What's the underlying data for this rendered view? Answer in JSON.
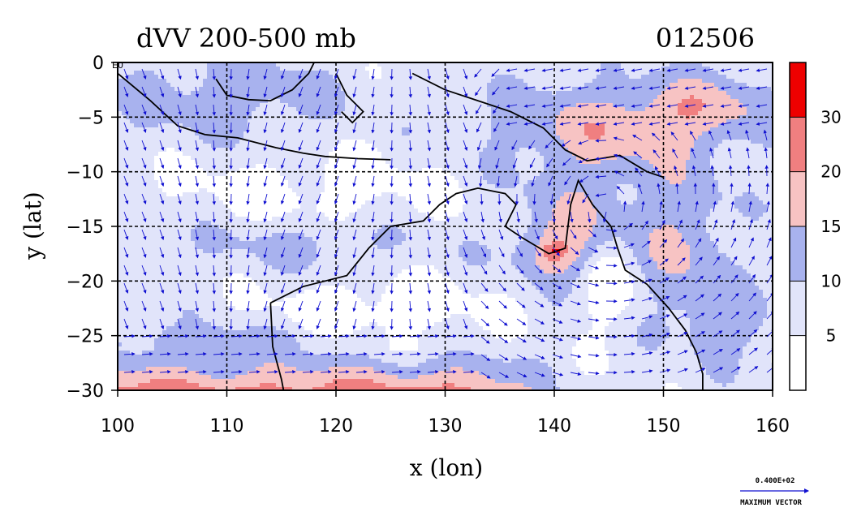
{
  "chart_data": {
    "type": "heatmap",
    "title": "dVV 200-500 mb",
    "date_label": "012506",
    "xlabel": "x (lon)",
    "ylabel": "y (lat)",
    "xlim": [
      100,
      160
    ],
    "ylim": [
      -30,
      0
    ],
    "x_ticks": [
      "100",
      "110",
      "120",
      "130",
      "140",
      "150",
      "160"
    ],
    "y_ticks": [
      "0",
      "−5",
      "−10",
      "−15",
      "−20",
      "−25",
      "−30"
    ],
    "x_tick_values": [
      100,
      110,
      120,
      130,
      140,
      150,
      160
    ],
    "y_tick_values": [
      0,
      -5,
      -10,
      -15,
      -20,
      -25,
      -30
    ],
    "grid_lon": [
      110,
      120,
      130,
      140,
      150
    ],
    "grid_lat": [
      -5,
      -10,
      -15,
      -20,
      -25
    ],
    "corner_label": "E0",
    "colorbar": {
      "levels": [
        0,
        5,
        10,
        15,
        20,
        30,
        40
      ],
      "labels": [
        "5",
        "10",
        "15",
        "20",
        "30"
      ],
      "label_values": [
        5,
        10,
        15,
        20,
        30
      ],
      "colors": [
        "#ffffff",
        "#e1e4fa",
        "#a8b2ee",
        "#f7c3c3",
        "#f07f80",
        "#ee0000"
      ]
    },
    "max_vector": {
      "value_label": "0.400E+02",
      "caption": "MAXIMUM VECTOR",
      "color": "#1010d0"
    },
    "vector_color": "#1010d0",
    "grid": true
  }
}
